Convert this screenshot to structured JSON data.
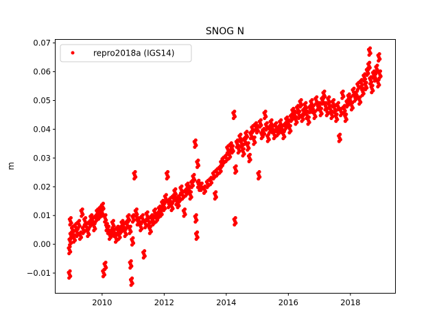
{
  "chart_data": {
    "type": "scatter",
    "title": "SNOG N",
    "xlabel": "",
    "ylabel": "m",
    "xlim": [
      2008.5,
      2019.44
    ],
    "ylim": [
      -0.0169,
      0.0711
    ],
    "xticks": [
      2010,
      2012,
      2014,
      2016,
      2018
    ],
    "xtick_labels": [
      "2010",
      "2012",
      "2014",
      "2016",
      "2018"
    ],
    "yticks": [
      -0.01,
      0.0,
      0.01,
      0.02,
      0.03,
      0.04,
      0.05,
      0.06,
      0.07
    ],
    "ytick_labels": [
      "−0.01",
      "0.00",
      "0.01",
      "0.02",
      "0.03",
      "0.04",
      "0.05",
      "0.06",
      "0.07"
    ],
    "grid": false,
    "legend": {
      "placement": "top-left",
      "entries": [
        "repro2018a (IGS14)"
      ]
    },
    "series": [
      {
        "name": "repro2018a (IGS14)",
        "color": "#ff0000",
        "points": [
          [
            2008.95,
            -0.0105
          ],
          [
            2008.95,
            -0.002
          ],
          [
            2008.97,
            0.001
          ],
          [
            2008.98,
            0.008
          ],
          [
            2009.0,
            0.003
          ],
          [
            2009.05,
            0.005
          ],
          [
            2009.1,
            0.002
          ],
          [
            2009.15,
            0.006
          ],
          [
            2009.2,
            0.004
          ],
          [
            2009.25,
            0.007
          ],
          [
            2009.3,
            0.003
          ],
          [
            2009.35,
            0.011
          ],
          [
            2009.4,
            0.005
          ],
          [
            2009.45,
            0.008
          ],
          [
            2009.5,
            0.006
          ],
          [
            2009.55,
            0.004
          ],
          [
            2009.6,
            0.007
          ],
          [
            2009.65,
            0.009
          ],
          [
            2009.7,
            0.008
          ],
          [
            2009.75,
            0.006
          ],
          [
            2009.8,
            0.009
          ],
          [
            2009.85,
            0.011
          ],
          [
            2009.9,
            0.01
          ],
          [
            2009.95,
            0.012
          ],
          [
            2010.0,
            0.011
          ],
          [
            2010.02,
            0.013
          ],
          [
            2010.05,
            -0.01
          ],
          [
            2010.1,
            -0.0075
          ],
          [
            2010.1,
            0.009
          ],
          [
            2010.15,
            0.006
          ],
          [
            2010.2,
            0.005
          ],
          [
            2010.25,
            0.003
          ],
          [
            2010.3,
            0.004
          ],
          [
            2010.35,
            0.007
          ],
          [
            2010.4,
            0.004
          ],
          [
            2010.45,
            0.002
          ],
          [
            2010.5,
            0.005
          ],
          [
            2010.55,
            0.003
          ],
          [
            2010.6,
            0.005
          ],
          [
            2010.65,
            0.007
          ],
          [
            2010.7,
            0.006
          ],
          [
            2010.75,
            0.004
          ],
          [
            2010.8,
            0.007
          ],
          [
            2010.85,
            0.009
          ],
          [
            2010.9,
            0.005
          ],
          [
            2010.92,
            -0.007
          ],
          [
            2010.95,
            -0.013
          ],
          [
            2010.98,
            0.001
          ],
          [
            2011.0,
            0.009
          ],
          [
            2011.05,
            0.024
          ],
          [
            2011.1,
            0.011
          ],
          [
            2011.15,
            0.008
          ],
          [
            2011.2,
            0.008
          ],
          [
            2011.25,
            0.006
          ],
          [
            2011.3,
            0.009
          ],
          [
            2011.35,
            -0.0035
          ],
          [
            2011.4,
            0.007
          ],
          [
            2011.45,
            0.01
          ],
          [
            2011.5,
            0.008
          ],
          [
            2011.55,
            0.005
          ],
          [
            2011.6,
            0.009
          ],
          [
            2011.65,
            0.008
          ],
          [
            2011.7,
            0.011
          ],
          [
            2011.75,
            0.009
          ],
          [
            2011.8,
            0.01
          ],
          [
            2011.85,
            0.012
          ],
          [
            2011.9,
            0.011
          ],
          [
            2011.95,
            0.014
          ],
          [
            2012.0,
            0.013
          ],
          [
            2012.05,
            0.016
          ],
          [
            2012.1,
            0.024
          ],
          [
            2012.15,
            0.014
          ],
          [
            2012.2,
            0.015
          ],
          [
            2012.25,
            0.013
          ],
          [
            2012.3,
            0.016
          ],
          [
            2012.35,
            0.018
          ],
          [
            2012.4,
            0.015
          ],
          [
            2012.45,
            0.014
          ],
          [
            2012.5,
            0.016
          ],
          [
            2012.55,
            0.019
          ],
          [
            2012.6,
            0.017
          ],
          [
            2012.65,
            0.011
          ],
          [
            2012.7,
            0.018
          ],
          [
            2012.75,
            0.02
          ],
          [
            2012.8,
            0.019
          ],
          [
            2012.85,
            0.017
          ],
          [
            2012.9,
            0.021
          ],
          [
            2012.95,
            0.023
          ],
          [
            2013.0,
            0.035
          ],
          [
            2013.02,
            0.009
          ],
          [
            2013.05,
            0.003
          ],
          [
            2013.08,
            0.028
          ],
          [
            2013.1,
            0.021
          ],
          [
            2013.15,
            0.02
          ],
          [
            2013.2,
            0.02
          ],
          [
            2013.3,
            0.019
          ],
          [
            2013.4,
            0.021
          ],
          [
            2013.5,
            0.022
          ],
          [
            2013.6,
            0.024
          ],
          [
            2013.65,
            0.017
          ],
          [
            2013.7,
            0.025
          ],
          [
            2013.8,
            0.026
          ],
          [
            2013.85,
            0.028
          ],
          [
            2013.9,
            0.029
          ],
          [
            2014.0,
            0.03
          ],
          [
            2014.05,
            0.033
          ],
          [
            2014.1,
            0.031
          ],
          [
            2014.15,
            0.034
          ],
          [
            2014.2,
            0.033
          ],
          [
            2014.25,
            0.045
          ],
          [
            2014.28,
            0.008
          ],
          [
            2014.3,
            0.026
          ],
          [
            2014.35,
            0.035
          ],
          [
            2014.4,
            0.033
          ],
          [
            2014.45,
            0.037
          ],
          [
            2014.5,
            0.035
          ],
          [
            2014.55,
            0.032
          ],
          [
            2014.6,
            0.036
          ],
          [
            2014.65,
            0.038
          ],
          [
            2014.7,
            0.034
          ],
          [
            2014.75,
            0.03
          ],
          [
            2014.8,
            0.038
          ],
          [
            2014.85,
            0.04
          ],
          [
            2014.9,
            0.036
          ],
          [
            2014.95,
            0.041
          ],
          [
            2015.0,
            0.04
          ],
          [
            2015.05,
            0.024
          ],
          [
            2015.1,
            0.042
          ],
          [
            2015.15,
            0.038
          ],
          [
            2015.2,
            0.039
          ],
          [
            2015.25,
            0.045
          ],
          [
            2015.3,
            0.041
          ],
          [
            2015.35,
            0.037
          ],
          [
            2015.4,
            0.04
          ],
          [
            2015.45,
            0.042
          ],
          [
            2015.5,
            0.04
          ],
          [
            2015.55,
            0.038
          ],
          [
            2015.6,
            0.041
          ],
          [
            2015.65,
            0.039
          ],
          [
            2015.7,
            0.04
          ],
          [
            2015.75,
            0.042
          ],
          [
            2015.8,
            0.04
          ],
          [
            2015.85,
            0.038
          ],
          [
            2015.9,
            0.041
          ],
          [
            2015.95,
            0.043
          ],
          [
            2016.0,
            0.042
          ],
          [
            2016.05,
            0.04
          ],
          [
            2016.1,
            0.044
          ],
          [
            2016.15,
            0.046
          ],
          [
            2016.2,
            0.045
          ],
          [
            2016.25,
            0.043
          ],
          [
            2016.3,
            0.047
          ],
          [
            2016.35,
            0.045
          ],
          [
            2016.4,
            0.049
          ],
          [
            2016.45,
            0.044
          ],
          [
            2016.5,
            0.046
          ],
          [
            2016.55,
            0.048
          ],
          [
            2016.6,
            0.045
          ],
          [
            2016.65,
            0.043
          ],
          [
            2016.7,
            0.047
          ],
          [
            2016.75,
            0.049
          ],
          [
            2016.8,
            0.047
          ],
          [
            2016.85,
            0.045
          ],
          [
            2016.9,
            0.05
          ],
          [
            2016.95,
            0.048
          ],
          [
            2017.0,
            0.048
          ],
          [
            2017.05,
            0.046
          ],
          [
            2017.1,
            0.05
          ],
          [
            2017.15,
            0.052
          ],
          [
            2017.2,
            0.048
          ],
          [
            2017.25,
            0.046
          ],
          [
            2017.3,
            0.05
          ],
          [
            2017.35,
            0.047
          ],
          [
            2017.4,
            0.045
          ],
          [
            2017.45,
            0.049
          ],
          [
            2017.5,
            0.047
          ],
          [
            2017.55,
            0.044
          ],
          [
            2017.6,
            0.048
          ],
          [
            2017.65,
            0.037
          ],
          [
            2017.7,
            0.046
          ],
          [
            2017.75,
            0.052
          ],
          [
            2017.8,
            0.047
          ],
          [
            2017.85,
            0.044
          ],
          [
            2017.9,
            0.049
          ],
          [
            2017.95,
            0.051
          ],
          [
            2018.0,
            0.05
          ],
          [
            2018.05,
            0.048
          ],
          [
            2018.1,
            0.053
          ],
          [
            2018.15,
            0.051
          ],
          [
            2018.2,
            0.052
          ],
          [
            2018.25,
            0.055
          ],
          [
            2018.3,
            0.05
          ],
          [
            2018.35,
            0.056
          ],
          [
            2018.4,
            0.053
          ],
          [
            2018.45,
            0.058
          ],
          [
            2018.5,
            0.055
          ],
          [
            2018.55,
            0.06
          ],
          [
            2018.6,
            0.062
          ],
          [
            2018.62,
            0.067
          ],
          [
            2018.65,
            0.057
          ],
          [
            2018.7,
            0.054
          ],
          [
            2018.75,
            0.059
          ],
          [
            2018.8,
            0.058
          ],
          [
            2018.85,
            0.061
          ],
          [
            2018.9,
            0.056
          ],
          [
            2018.92,
            0.065
          ],
          [
            2018.95,
            0.059
          ]
        ]
      }
    ]
  }
}
